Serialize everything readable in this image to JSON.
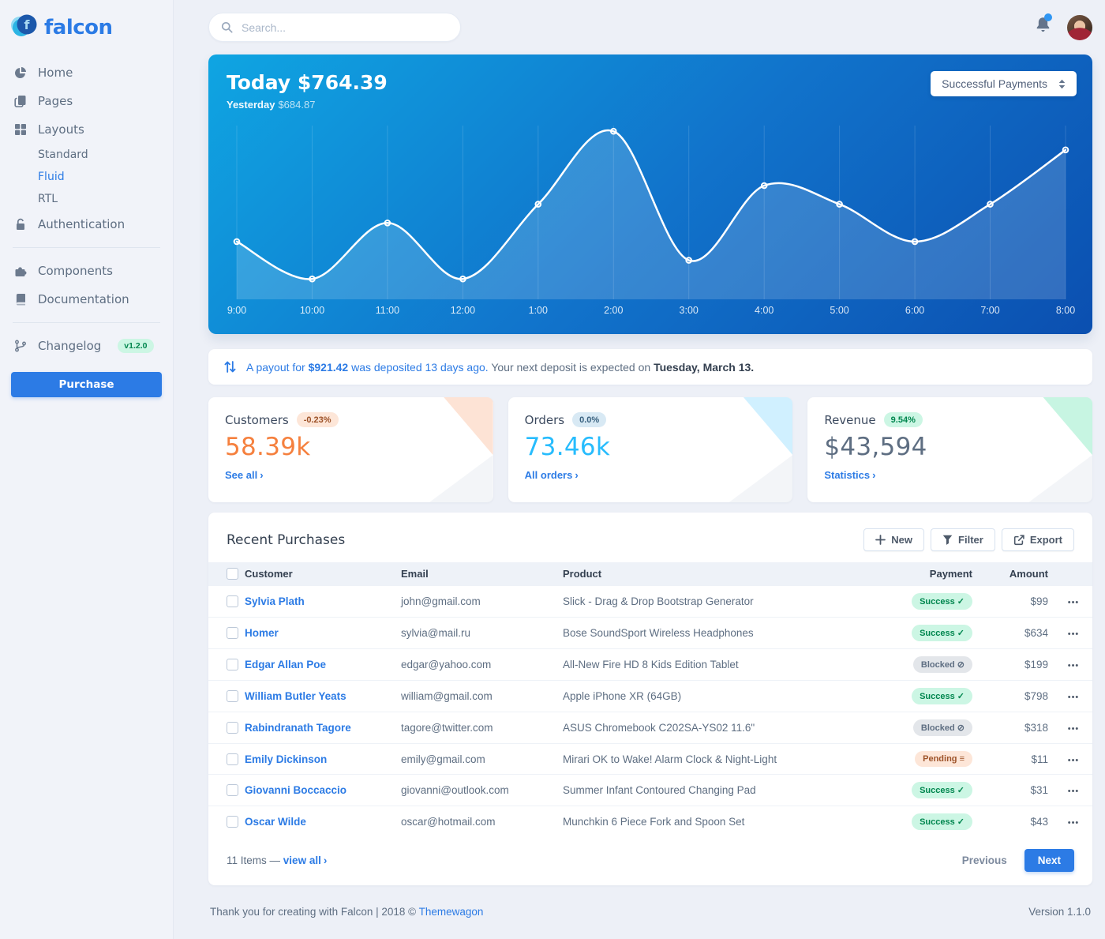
{
  "brand": {
    "name": "falcon"
  },
  "colors": {
    "primary": "#2c7be5",
    "warning": "#f5803e",
    "info": "#27bcfd",
    "success_badge_bg": "#ccf6e4",
    "success_badge_fg": "#00864e",
    "blocked_badge_bg": "#e3e6ea",
    "blocked_badge_fg": "#5e6e82",
    "pending_badge_bg": "#fde6d8",
    "pending_badge_fg": "#9d5228",
    "chart_gradient_start": "#0fa5e2",
    "chart_gradient_end": "#0b4fb0"
  },
  "sidebar": {
    "items": [
      {
        "label": "Home",
        "icon": "pie-chart-icon"
      },
      {
        "label": "Pages",
        "icon": "pages-icon"
      },
      {
        "label": "Layouts",
        "icon": "grid-icon",
        "children": [
          "Standard",
          "Fluid",
          "RTL"
        ],
        "active_child": "Fluid"
      },
      {
        "label": "Authentication",
        "icon": "lock-icon"
      },
      {
        "divider": true
      },
      {
        "label": "Components",
        "icon": "puzzle-icon"
      },
      {
        "label": "Documentation",
        "icon": "book-icon"
      },
      {
        "divider": true
      },
      {
        "label": "Changelog",
        "icon": "branch-icon",
        "badge": "v1.2.0"
      }
    ],
    "purchase_label": "Purchase"
  },
  "topbar": {
    "search_placeholder": "Search..."
  },
  "payments_card": {
    "title": "Today $764.39",
    "yesterday_label": "Yesterday",
    "yesterday_value": "$684.87",
    "select_value": "Successful Payments"
  },
  "chart_data": {
    "type": "line",
    "title": "Today $764.39",
    "x": [
      "9:00",
      "10:00",
      "11:00",
      "12:00",
      "1:00",
      "2:00",
      "3:00",
      "4:00",
      "5:00",
      "6:00",
      "7:00",
      "8:00"
    ],
    "values": [
      34,
      12,
      45,
      12,
      56,
      99,
      23,
      67,
      56,
      34,
      56,
      88
    ],
    "xlabel": "",
    "ylabel": "",
    "ylim": [
      0,
      110
    ],
    "grid": "vertical",
    "legend": "none",
    "style": "white smooth line, hollow circle markers, translucent white area fill on blue gradient"
  },
  "notice": {
    "prefix": "A payout for",
    "amount": "$921.42",
    "suffix": "was deposited 13 days ago.",
    "rest": "Your next deposit is expected on",
    "date": "Tuesday, March 13."
  },
  "stats": [
    {
      "label": "Customers",
      "badge": "-0.23%",
      "value": "58.39k",
      "link_label": "See all",
      "value_color": "#f5803e",
      "badge_bg": "#fde6d8",
      "badge_color": "#9d5228",
      "corner_color": "#f5803e"
    },
    {
      "label": "Orders",
      "badge": "0.0%",
      "value": "73.46k",
      "link_label": "All orders",
      "value_color": "#27bcfd",
      "badge_bg": "#d8e9f4",
      "badge_color": "#39617f",
      "corner_color": "#27bcfd"
    },
    {
      "label": "Revenue",
      "badge": "9.54%",
      "value": "$43,594",
      "link_label": "Statistics",
      "value_color": "#5e6e82",
      "badge_bg": "#ccf6e4",
      "badge_color": "#00864e",
      "corner_color": "#00d27a"
    }
  ],
  "purchases": {
    "title": "Recent Purchases",
    "buttons": [
      {
        "label": "New",
        "icon": "plus-icon"
      },
      {
        "label": "Filter",
        "icon": "filter-icon"
      },
      {
        "label": "Export",
        "icon": "export-icon"
      }
    ],
    "columns": [
      "Customer",
      "Email",
      "Product",
      "Payment",
      "Amount"
    ],
    "rows": [
      {
        "customer": "Sylvia Plath",
        "email": "john@gmail.com",
        "product": "Slick - Drag & Drop Bootstrap Generator",
        "payment": "Success",
        "amount": "$99"
      },
      {
        "customer": "Homer",
        "email": "sylvia@mail.ru",
        "product": "Bose SoundSport Wireless Headphones",
        "payment": "Success",
        "amount": "$634"
      },
      {
        "customer": "Edgar Allan Poe",
        "email": "edgar@yahoo.com",
        "product": "All-New Fire HD 8 Kids Edition Tablet",
        "payment": "Blocked",
        "amount": "$199"
      },
      {
        "customer": "William Butler Yeats",
        "email": "william@gmail.com",
        "product": "Apple iPhone XR (64GB)",
        "payment": "Success",
        "amount": "$798"
      },
      {
        "customer": "Rabindranath Tagore",
        "email": "tagore@twitter.com",
        "product": "ASUS Chromebook C202SA-YS02 11.6\"",
        "payment": "Blocked",
        "amount": "$318"
      },
      {
        "customer": "Emily Dickinson",
        "email": "emily@gmail.com",
        "product": "Mirari OK to Wake! Alarm Clock & Night-Light",
        "payment": "Pending",
        "amount": "$11"
      },
      {
        "customer": "Giovanni Boccaccio",
        "email": "giovanni@outlook.com",
        "product": "Summer Infant Contoured Changing Pad",
        "payment": "Success",
        "amount": "$31"
      },
      {
        "customer": "Oscar Wilde",
        "email": "oscar@hotmail.com",
        "product": "Munchkin 6 Piece Fork and Spoon Set",
        "payment": "Success",
        "amount": "$43"
      }
    ],
    "footer": {
      "count": "11 Items —",
      "view_all": "view all",
      "previous": "Previous",
      "next": "Next"
    }
  },
  "page_footer": {
    "thanks": "Thank you for creating with Falcon | 2018 ©",
    "brand_link": "Themewagon",
    "version": "Version 1.1.0"
  }
}
